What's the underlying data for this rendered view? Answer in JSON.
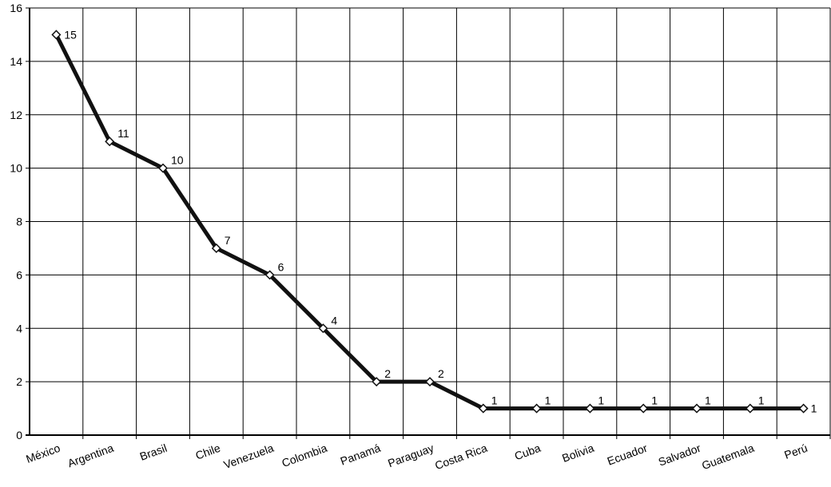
{
  "chart_data": {
    "type": "line",
    "title": "",
    "xlabel": "",
    "ylabel": "",
    "ylim": [
      0,
      16
    ],
    "yticks": [
      0,
      2,
      4,
      6,
      8,
      10,
      12,
      14,
      16
    ],
    "grid": true,
    "legend": "none",
    "categories": [
      "México",
      "Argentina",
      "Brasil",
      "Chile",
      "Venezuela",
      "Colombia",
      "Panamá",
      "Paraguay",
      "Costa Rica",
      "Cuba",
      "Bolivia",
      "Ecuador",
      "Salvador",
      "Guatemala",
      "Perú"
    ],
    "series": [
      {
        "values": [
          15,
          11,
          10,
          7,
          6,
          4,
          2,
          2,
          1,
          1,
          1,
          1,
          1,
          1,
          1
        ]
      }
    ],
    "colors": {
      "line": "#111111",
      "marker_fill": "#ffffff",
      "grid": "#000000"
    }
  }
}
